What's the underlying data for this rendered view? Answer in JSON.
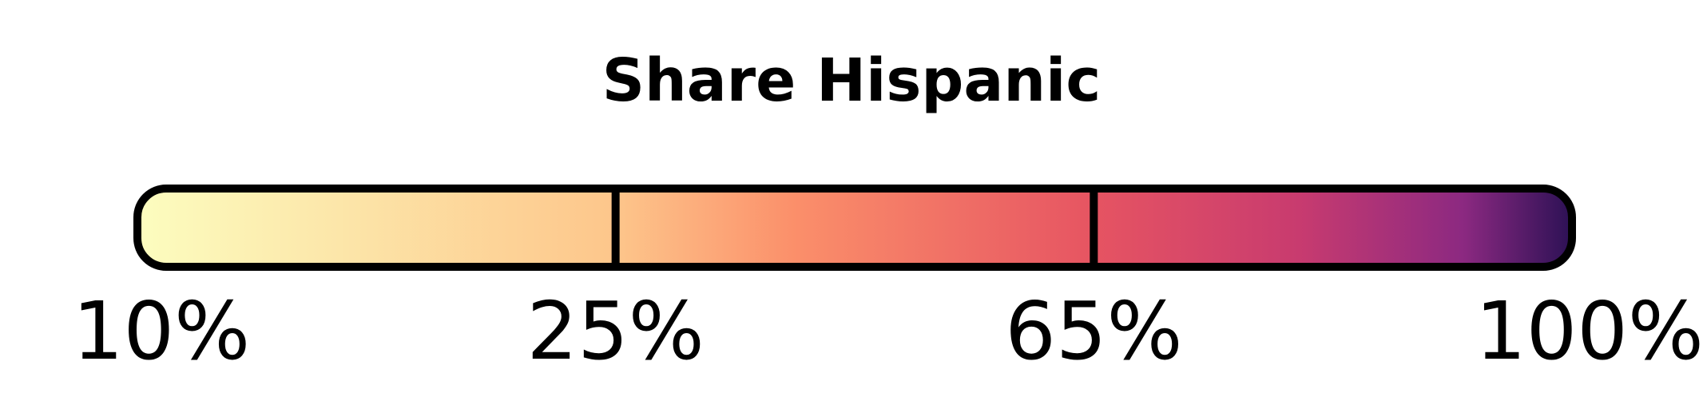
{
  "chart_data": {
    "type": "color-legend",
    "title": "Share Hispanic",
    "breaks": [
      10,
      25,
      65,
      100
    ],
    "tick_labels": [
      "10%",
      "25%",
      "65%",
      "100%"
    ],
    "colormap": "magma",
    "gradient_stops": [
      {
        "value": 10,
        "color": "#fcfdbf"
      },
      {
        "value": 25,
        "color": "#fdc68b"
      },
      {
        "value": 40,
        "color": "#fb8f6a"
      },
      {
        "value": 65,
        "color": "#e65462"
      },
      {
        "value": 80,
        "color": "#c83b6f"
      },
      {
        "value": 92,
        "color": "#8c2981"
      },
      {
        "value": 100,
        "color": "#2c1155"
      }
    ]
  }
}
